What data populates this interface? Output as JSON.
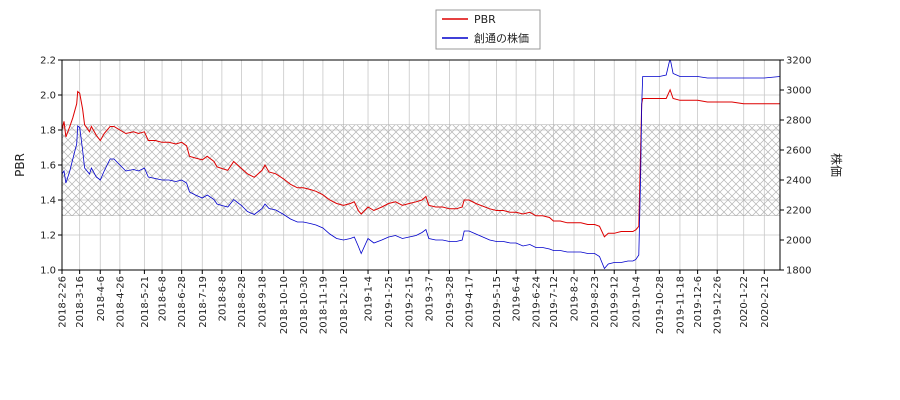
{
  "chart_data": {
    "type": "line",
    "legend": {
      "placement": "top-center",
      "entries": [
        "PBR",
        "創通の株価"
      ]
    },
    "colors": {
      "PBR": "#dd0000",
      "price": "#0000cc",
      "grid": "#c8c8c8",
      "band_hatch": "#bbbbbb"
    },
    "grid": true,
    "left_axis": {
      "label": "PBR",
      "ylim": [
        1.0,
        2.2
      ],
      "ticks": [
        "1.0",
        "1.2",
        "1.4",
        "1.6",
        "1.8",
        "2.0",
        "2.2"
      ]
    },
    "right_axis": {
      "label": "株価",
      "ylim": [
        1800,
        3200
      ],
      "ticks": [
        "1800",
        "2000",
        "2200",
        "2400",
        "2600",
        "2800",
        "3000",
        "3200"
      ]
    },
    "x_axis": {
      "range": [
        "2018-02-26",
        "2020-02-28"
      ],
      "ticks": [
        "2018-2-26",
        "2018-3-16",
        "2018-4-6",
        "2018-4-26",
        "2018-5-21",
        "2018-6-8",
        "2018-6-28",
        "2018-7-19",
        "2018-8-8",
        "2018-8-28",
        "2018-9-18",
        "2018-10-10",
        "2018-10-30",
        "2018-11-19",
        "2018-12-10",
        "2019-1-4",
        "2019-1-25",
        "2019-2-15",
        "2019-3-7",
        "2019-3-28",
        "2019-4-17",
        "2019-5-15",
        "2019-6-4",
        "2019-6-24",
        "2019-7-12",
        "2019-8-2",
        "2019-8-23",
        "2019-9-12",
        "2019-10-4",
        "2019-10-28",
        "2019-11-18",
        "2019-12-6",
        "2019-12-26",
        "2020-1-22",
        "2020-2-12"
      ]
    },
    "band": {
      "pbr_range": [
        1.31,
        1.83
      ]
    },
    "series": [
      {
        "name": "PBR",
        "axis": "left",
        "points": [
          [
            "2018-02-26",
            1.8
          ],
          [
            "2018-02-28",
            1.85
          ],
          [
            "2018-03-02",
            1.76
          ],
          [
            "2018-03-06",
            1.82
          ],
          [
            "2018-03-09",
            1.87
          ],
          [
            "2018-03-13",
            1.95
          ],
          [
            "2018-03-14",
            2.02
          ],
          [
            "2018-03-16",
            2.01
          ],
          [
            "2018-03-19",
            1.92
          ],
          [
            "2018-03-21",
            1.83
          ],
          [
            "2018-03-26",
            1.79
          ],
          [
            "2018-03-28",
            1.82
          ],
          [
            "2018-04-02",
            1.77
          ],
          [
            "2018-04-06",
            1.74
          ],
          [
            "2018-04-10",
            1.78
          ],
          [
            "2018-04-16",
            1.82
          ],
          [
            "2018-04-20",
            1.82
          ],
          [
            "2018-04-26",
            1.8
          ],
          [
            "2018-05-02",
            1.78
          ],
          [
            "2018-05-10",
            1.79
          ],
          [
            "2018-05-15",
            1.78
          ],
          [
            "2018-05-21",
            1.79
          ],
          [
            "2018-05-25",
            1.74
          ],
          [
            "2018-06-01",
            1.74
          ],
          [
            "2018-06-08",
            1.73
          ],
          [
            "2018-06-15",
            1.73
          ],
          [
            "2018-06-22",
            1.72
          ],
          [
            "2018-06-28",
            1.73
          ],
          [
            "2018-07-03",
            1.71
          ],
          [
            "2018-07-06",
            1.65
          ],
          [
            "2018-07-12",
            1.64
          ],
          [
            "2018-07-19",
            1.63
          ],
          [
            "2018-07-24",
            1.65
          ],
          [
            "2018-07-31",
            1.62
          ],
          [
            "2018-08-03",
            1.59
          ],
          [
            "2018-08-08",
            1.58
          ],
          [
            "2018-08-14",
            1.57
          ],
          [
            "2018-08-20",
            1.62
          ],
          [
            "2018-08-28",
            1.58
          ],
          [
            "2018-09-03",
            1.55
          ],
          [
            "2018-09-10",
            1.53
          ],
          [
            "2018-09-18",
            1.57
          ],
          [
            "2018-09-21",
            1.6
          ],
          [
            "2018-09-25",
            1.56
          ],
          [
            "2018-10-02",
            1.55
          ],
          [
            "2018-10-10",
            1.52
          ],
          [
            "2018-10-17",
            1.49
          ],
          [
            "2018-10-24",
            1.47
          ],
          [
            "2018-10-30",
            1.47
          ],
          [
            "2018-11-06",
            1.46
          ],
          [
            "2018-11-12",
            1.45
          ],
          [
            "2018-11-19",
            1.43
          ],
          [
            "2018-11-26",
            1.4
          ],
          [
            "2018-12-03",
            1.38
          ],
          [
            "2018-12-10",
            1.37
          ],
          [
            "2018-12-17",
            1.38
          ],
          [
            "2018-12-21",
            1.39
          ],
          [
            "2018-12-25",
            1.34
          ],
          [
            "2018-12-28",
            1.32
          ],
          [
            "2019-01-04",
            1.36
          ],
          [
            "2019-01-10",
            1.34
          ],
          [
            "2019-01-18",
            1.36
          ],
          [
            "2019-01-25",
            1.38
          ],
          [
            "2019-02-01",
            1.39
          ],
          [
            "2019-02-08",
            1.37
          ],
          [
            "2019-02-15",
            1.38
          ],
          [
            "2019-02-22",
            1.39
          ],
          [
            "2019-02-28",
            1.4
          ],
          [
            "2019-03-04",
            1.42
          ],
          [
            "2019-03-07",
            1.37
          ],
          [
            "2019-03-14",
            1.36
          ],
          [
            "2019-03-21",
            1.36
          ],
          [
            "2019-03-28",
            1.35
          ],
          [
            "2019-04-04",
            1.35
          ],
          [
            "2019-04-10",
            1.36
          ],
          [
            "2019-04-12",
            1.4
          ],
          [
            "2019-04-17",
            1.4
          ],
          [
            "2019-04-24",
            1.38
          ],
          [
            "2019-05-08",
            1.35
          ],
          [
            "2019-05-15",
            1.34
          ],
          [
            "2019-05-22",
            1.34
          ],
          [
            "2019-05-29",
            1.33
          ],
          [
            "2019-06-04",
            1.33
          ],
          [
            "2019-06-11",
            1.32
          ],
          [
            "2019-06-18",
            1.33
          ],
          [
            "2019-06-24",
            1.31
          ],
          [
            "2019-07-01",
            1.31
          ],
          [
            "2019-07-08",
            1.3
          ],
          [
            "2019-07-12",
            1.28
          ],
          [
            "2019-07-19",
            1.28
          ],
          [
            "2019-07-26",
            1.27
          ],
          [
            "2019-08-02",
            1.27
          ],
          [
            "2019-08-09",
            1.27
          ],
          [
            "2019-08-16",
            1.26
          ],
          [
            "2019-08-23",
            1.26
          ],
          [
            "2019-08-28",
            1.25
          ],
          [
            "2019-09-02",
            1.19
          ],
          [
            "2019-09-06",
            1.21
          ],
          [
            "2019-09-12",
            1.21
          ],
          [
            "2019-09-19",
            1.22
          ],
          [
            "2019-09-26",
            1.22
          ],
          [
            "2019-10-01",
            1.22
          ],
          [
            "2019-10-04",
            1.23
          ],
          [
            "2019-10-07",
            1.25
          ],
          [
            "2019-10-09",
            1.7
          ],
          [
            "2019-10-10",
            1.95
          ],
          [
            "2019-10-11",
            1.98
          ],
          [
            "2019-10-18",
            1.98
          ],
          [
            "2019-10-28",
            1.98
          ],
          [
            "2019-11-04",
            1.98
          ],
          [
            "2019-11-08",
            2.03
          ],
          [
            "2019-11-11",
            1.98
          ],
          [
            "2019-11-18",
            1.97
          ],
          [
            "2019-11-25",
            1.97
          ],
          [
            "2019-12-06",
            1.97
          ],
          [
            "2019-12-16",
            1.96
          ],
          [
            "2019-12-26",
            1.96
          ],
          [
            "2020-01-10",
            1.96
          ],
          [
            "2020-01-22",
            1.95
          ],
          [
            "2020-02-12",
            1.95
          ],
          [
            "2020-02-28",
            1.95
          ]
        ]
      },
      {
        "name": "創通の株価",
        "axis": "right",
        "points": [
          [
            "2018-02-26",
            2440
          ],
          [
            "2018-02-28",
            2460
          ],
          [
            "2018-03-02",
            2380
          ],
          [
            "2018-03-06",
            2460
          ],
          [
            "2018-03-09",
            2540
          ],
          [
            "2018-03-13",
            2640
          ],
          [
            "2018-03-14",
            2760
          ],
          [
            "2018-03-16",
            2750
          ],
          [
            "2018-03-19",
            2600
          ],
          [
            "2018-03-21",
            2480
          ],
          [
            "2018-03-26",
            2440
          ],
          [
            "2018-03-28",
            2480
          ],
          [
            "2018-04-02",
            2420
          ],
          [
            "2018-04-06",
            2400
          ],
          [
            "2018-04-10",
            2460
          ],
          [
            "2018-04-16",
            2540
          ],
          [
            "2018-04-20",
            2540
          ],
          [
            "2018-04-26",
            2500
          ],
          [
            "2018-05-02",
            2460
          ],
          [
            "2018-05-10",
            2470
          ],
          [
            "2018-05-15",
            2460
          ],
          [
            "2018-05-21",
            2480
          ],
          [
            "2018-05-25",
            2420
          ],
          [
            "2018-06-01",
            2410
          ],
          [
            "2018-06-08",
            2400
          ],
          [
            "2018-06-15",
            2400
          ],
          [
            "2018-06-22",
            2390
          ],
          [
            "2018-06-28",
            2400
          ],
          [
            "2018-07-03",
            2380
          ],
          [
            "2018-07-06",
            2320
          ],
          [
            "2018-07-12",
            2300
          ],
          [
            "2018-07-19",
            2280
          ],
          [
            "2018-07-24",
            2300
          ],
          [
            "2018-07-31",
            2270
          ],
          [
            "2018-08-03",
            2240
          ],
          [
            "2018-08-08",
            2230
          ],
          [
            "2018-08-14",
            2220
          ],
          [
            "2018-08-20",
            2270
          ],
          [
            "2018-08-28",
            2230
          ],
          [
            "2018-09-03",
            2190
          ],
          [
            "2018-09-10",
            2170
          ],
          [
            "2018-09-18",
            2210
          ],
          [
            "2018-09-21",
            2240
          ],
          [
            "2018-09-25",
            2210
          ],
          [
            "2018-10-02",
            2200
          ],
          [
            "2018-10-10",
            2170
          ],
          [
            "2018-10-17",
            2140
          ],
          [
            "2018-10-24",
            2120
          ],
          [
            "2018-10-30",
            2120
          ],
          [
            "2018-11-06",
            2110
          ],
          [
            "2018-11-12",
            2100
          ],
          [
            "2018-11-19",
            2080
          ],
          [
            "2018-11-26",
            2040
          ],
          [
            "2018-12-03",
            2010
          ],
          [
            "2018-12-10",
            2000
          ],
          [
            "2018-12-17",
            2010
          ],
          [
            "2018-12-21",
            2020
          ],
          [
            "2018-12-25",
            1960
          ],
          [
            "2018-12-28",
            1910
          ],
          [
            "2019-01-04",
            2010
          ],
          [
            "2019-01-10",
            1980
          ],
          [
            "2019-01-18",
            2000
          ],
          [
            "2019-01-25",
            2020
          ],
          [
            "2019-02-01",
            2030
          ],
          [
            "2019-02-08",
            2010
          ],
          [
            "2019-02-15",
            2020
          ],
          [
            "2019-02-22",
            2030
          ],
          [
            "2019-02-28",
            2050
          ],
          [
            "2019-03-04",
            2070
          ],
          [
            "2019-03-07",
            2010
          ],
          [
            "2019-03-14",
            2000
          ],
          [
            "2019-03-21",
            2000
          ],
          [
            "2019-03-28",
            1990
          ],
          [
            "2019-04-04",
            1990
          ],
          [
            "2019-04-10",
            2000
          ],
          [
            "2019-04-12",
            2060
          ],
          [
            "2019-04-17",
            2060
          ],
          [
            "2019-04-24",
            2040
          ],
          [
            "2019-05-08",
            2000
          ],
          [
            "2019-05-15",
            1990
          ],
          [
            "2019-05-22",
            1990
          ],
          [
            "2019-05-29",
            1980
          ],
          [
            "2019-06-04",
            1980
          ],
          [
            "2019-06-11",
            1960
          ],
          [
            "2019-06-18",
            1970
          ],
          [
            "2019-06-24",
            1950
          ],
          [
            "2019-07-01",
            1950
          ],
          [
            "2019-07-08",
            1940
          ],
          [
            "2019-07-12",
            1930
          ],
          [
            "2019-07-19",
            1930
          ],
          [
            "2019-07-26",
            1920
          ],
          [
            "2019-08-02",
            1920
          ],
          [
            "2019-08-09",
            1920
          ],
          [
            "2019-08-16",
            1910
          ],
          [
            "2019-08-23",
            1910
          ],
          [
            "2019-08-28",
            1890
          ],
          [
            "2019-09-02",
            1810
          ],
          [
            "2019-09-06",
            1840
          ],
          [
            "2019-09-12",
            1850
          ],
          [
            "2019-09-19",
            1850
          ],
          [
            "2019-09-26",
            1860
          ],
          [
            "2019-10-01",
            1860
          ],
          [
            "2019-10-04",
            1870
          ],
          [
            "2019-10-07",
            1900
          ],
          [
            "2019-10-09",
            2450
          ],
          [
            "2019-10-10",
            2900
          ],
          [
            "2019-10-11",
            3090
          ],
          [
            "2019-10-18",
            3090
          ],
          [
            "2019-10-28",
            3090
          ],
          [
            "2019-11-04",
            3100
          ],
          [
            "2019-11-08",
            3210
          ],
          [
            "2019-11-11",
            3110
          ],
          [
            "2019-11-18",
            3090
          ],
          [
            "2019-11-25",
            3090
          ],
          [
            "2019-12-06",
            3090
          ],
          [
            "2019-12-16",
            3080
          ],
          [
            "2019-12-26",
            3080
          ],
          [
            "2020-01-10",
            3080
          ],
          [
            "2020-01-22",
            3080
          ],
          [
            "2020-02-12",
            3080
          ],
          [
            "2020-02-28",
            3090
          ]
        ]
      }
    ]
  }
}
